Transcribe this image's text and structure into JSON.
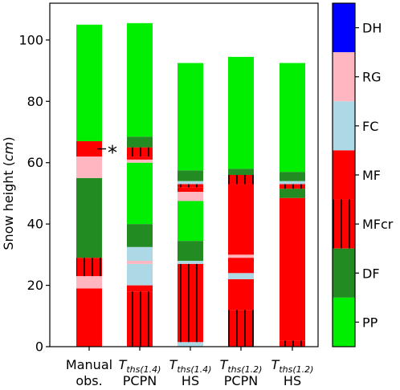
{
  "chart_data": {
    "type": "bar",
    "ylabel": "Snow height (cm)",
    "ylabel_parts": {
      "text": "Snow height (",
      "unit": "cm",
      "close": ")"
    },
    "ylim": [
      0,
      112
    ],
    "yticks": [
      0,
      20,
      40,
      60,
      80,
      100
    ],
    "annotation": "*",
    "annotation_height": 64.5,
    "categories": [
      {
        "line1": "Manual",
        "line2": "obs."
      },
      {
        "base": "T",
        "sub": "ths(1.4)",
        "line2": "PCPN"
      },
      {
        "base": "T",
        "sub": "ths(1.4)",
        "line2": "HS"
      },
      {
        "base": "T",
        "sub": "ths(1.2)",
        "line2": "PCPN"
      },
      {
        "base": "T",
        "sub": "ths(1.2)",
        "line2": "HS"
      }
    ],
    "legend": [
      {
        "key": "DH",
        "label": "DH",
        "color": "#0000ff"
      },
      {
        "key": "RG",
        "label": "RG",
        "color": "#ffb6c1"
      },
      {
        "key": "FC",
        "label": "FC",
        "color": "#add8e6"
      },
      {
        "key": "MF",
        "label": "MF",
        "color": "#ff0000"
      },
      {
        "key": "MFcr",
        "label": "MFcr",
        "color": "#ff0000",
        "hatch": true
      },
      {
        "key": "DF",
        "label": "DF",
        "color": "#228b22"
      },
      {
        "key": "PP",
        "label": "PP",
        "color": "#00ee00"
      }
    ],
    "stacks": [
      [
        {
          "type": "MF",
          "from": 0,
          "to": 19
        },
        {
          "type": "RG",
          "from": 19,
          "to": 23
        },
        {
          "type": "MFcr",
          "from": 23,
          "to": 29
        },
        {
          "type": "DF",
          "from": 29,
          "to": 55
        },
        {
          "type": "RG",
          "from": 55,
          "to": 62
        },
        {
          "type": "MF",
          "from": 62,
          "to": 67
        },
        {
          "type": "PP",
          "from": 67,
          "to": 105
        }
      ],
      [
        {
          "type": "MFcr",
          "from": 0,
          "to": 18
        },
        {
          "type": "MF",
          "from": 18,
          "to": 20
        },
        {
          "type": "FC",
          "from": 20,
          "to": 27
        },
        {
          "type": "RG",
          "from": 27,
          "to": 28
        },
        {
          "type": "FC",
          "from": 28,
          "to": 32.5
        },
        {
          "type": "DF",
          "from": 32.5,
          "to": 40
        },
        {
          "type": "PP",
          "from": 40,
          "to": 60
        },
        {
          "type": "RG",
          "from": 60,
          "to": 61
        },
        {
          "type": "MF",
          "from": 61,
          "to": 62
        },
        {
          "type": "MFcr",
          "from": 62,
          "to": 65
        },
        {
          "type": "DF",
          "from": 65,
          "to": 68.5
        },
        {
          "type": "PP",
          "from": 68.5,
          "to": 105.5
        }
      ],
      [
        {
          "type": "FC",
          "from": 0,
          "to": 1.5
        },
        {
          "type": "MFcr",
          "from": 1.5,
          "to": 27
        },
        {
          "type": "FC",
          "from": 27,
          "to": 28
        },
        {
          "type": "DF",
          "from": 28,
          "to": 34.5
        },
        {
          "type": "PP",
          "from": 34.5,
          "to": 47.5
        },
        {
          "type": "RG",
          "from": 47.5,
          "to": 50.5
        },
        {
          "type": "MF",
          "from": 50.5,
          "to": 52
        },
        {
          "type": "MFcr",
          "from": 52,
          "to": 53
        },
        {
          "type": "FC",
          "from": 53,
          "to": 54
        },
        {
          "type": "DF",
          "from": 54,
          "to": 57.5
        },
        {
          "type": "PP",
          "from": 57.5,
          "to": 92.5
        }
      ],
      [
        {
          "type": "MFcr",
          "from": 0,
          "to": 12
        },
        {
          "type": "MF",
          "from": 12,
          "to": 22
        },
        {
          "type": "FC",
          "from": 22,
          "to": 24
        },
        {
          "type": "MF",
          "from": 24,
          "to": 29
        },
        {
          "type": "RG",
          "from": 29,
          "to": 30
        },
        {
          "type": "MF",
          "from": 30,
          "to": 53
        },
        {
          "type": "MFcr",
          "from": 53,
          "to": 56
        },
        {
          "type": "DF",
          "from": 56,
          "to": 58
        },
        {
          "type": "PP",
          "from": 58,
          "to": 94.5
        }
      ],
      [
        {
          "type": "MFcr",
          "from": 0,
          "to": 2
        },
        {
          "type": "MF",
          "from": 2,
          "to": 48.5
        },
        {
          "type": "DF",
          "from": 48.5,
          "to": 51.5
        },
        {
          "type": "MFcr",
          "from": 51.5,
          "to": 53
        },
        {
          "type": "FC",
          "from": 53,
          "to": 54
        },
        {
          "type": "DF",
          "from": 54,
          "to": 57
        },
        {
          "type": "PP",
          "from": 57,
          "to": 92.5
        }
      ]
    ]
  }
}
